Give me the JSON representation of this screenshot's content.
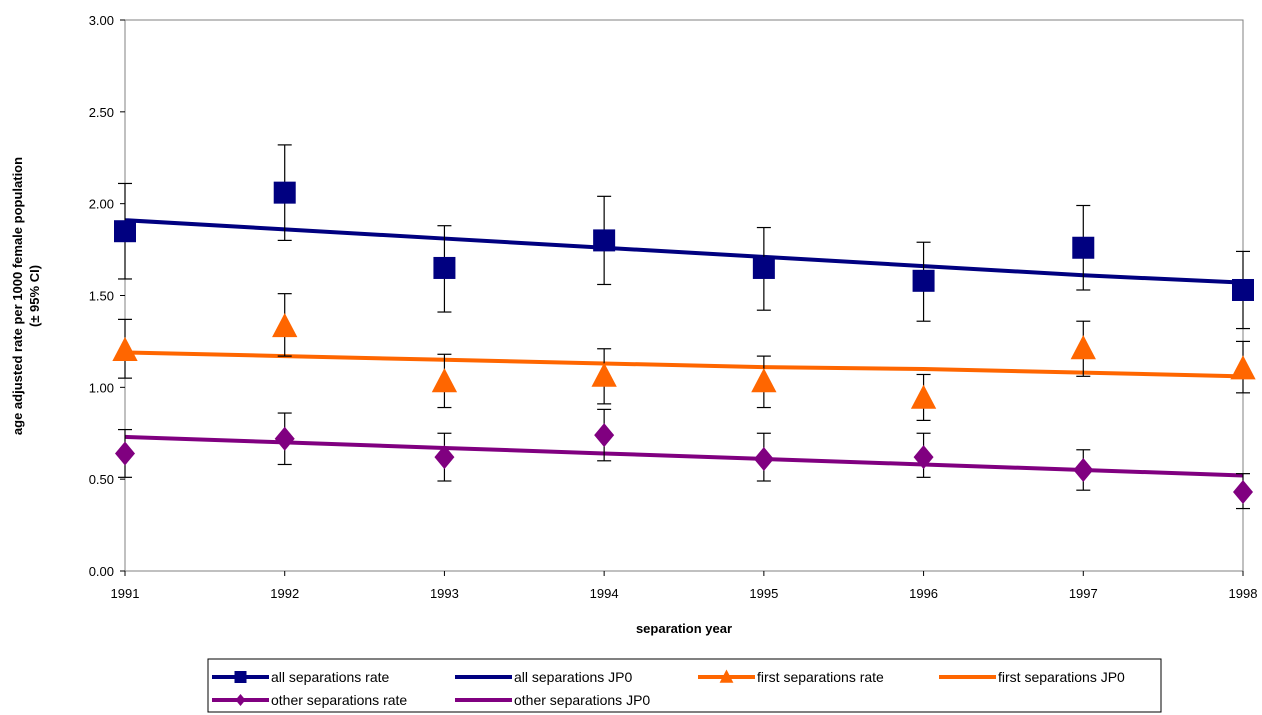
{
  "chart_data": {
    "type": "line",
    "x": [
      1991,
      1992,
      1993,
      1994,
      1995,
      1996,
      1997,
      1998
    ],
    "xlabel": "separation year",
    "ylabel_line1": "age adjusted rate per 1000 female population",
    "ylabel_line2": "(± 95% CI)",
    "ylim": [
      0,
      3
    ],
    "y_ticks": [
      "0.00",
      "0.50",
      "1.00",
      "1.50",
      "2.00",
      "2.50",
      "3.00"
    ],
    "x_ticks": [
      "1991",
      "1992",
      "1993",
      "1994",
      "1995",
      "1996",
      "1997",
      "1998"
    ],
    "grid": false,
    "legend_position": "bottom",
    "series": [
      {
        "name": "all separations rate",
        "kind": "points",
        "marker": "square",
        "color": "#000080",
        "values": [
          1.85,
          2.06,
          1.65,
          1.8,
          1.65,
          1.58,
          1.76,
          1.53
        ],
        "ci_low": [
          1.59,
          1.8,
          1.41,
          1.56,
          1.42,
          1.36,
          1.53,
          1.32
        ],
        "ci_high": [
          2.11,
          2.32,
          1.88,
          2.04,
          1.87,
          1.79,
          1.99,
          1.74
        ]
      },
      {
        "name": "all separations JP0",
        "kind": "line",
        "color": "#000080",
        "values": [
          1.91,
          1.86,
          1.81,
          1.76,
          1.71,
          1.66,
          1.61,
          1.57
        ]
      },
      {
        "name": "first separations rate",
        "kind": "points",
        "marker": "triangle",
        "color": "#FF6600",
        "values": [
          1.2,
          1.33,
          1.03,
          1.06,
          1.03,
          0.94,
          1.21,
          1.1
        ],
        "ci_low": [
          1.05,
          1.17,
          0.89,
          0.91,
          0.89,
          0.82,
          1.06,
          0.97
        ],
        "ci_high": [
          1.37,
          1.51,
          1.18,
          1.21,
          1.17,
          1.07,
          1.36,
          1.25
        ]
      },
      {
        "name": "first separations JP0",
        "kind": "line",
        "color": "#FF6600",
        "values": [
          1.19,
          1.17,
          1.15,
          1.13,
          1.11,
          1.1,
          1.08,
          1.06
        ]
      },
      {
        "name": "other separations rate",
        "kind": "points",
        "marker": "diamond",
        "color": "#800080",
        "values": [
          0.64,
          0.72,
          0.62,
          0.74,
          0.61,
          0.62,
          0.55,
          0.43
        ],
        "ci_low": [
          0.51,
          0.58,
          0.49,
          0.6,
          0.49,
          0.51,
          0.44,
          0.34
        ],
        "ci_high": [
          0.77,
          0.86,
          0.75,
          0.88,
          0.75,
          0.75,
          0.66,
          0.53
        ]
      },
      {
        "name": "other separations JP0",
        "kind": "line",
        "color": "#800080",
        "values": [
          0.73,
          0.7,
          0.67,
          0.64,
          0.61,
          0.58,
          0.55,
          0.52
        ]
      }
    ]
  }
}
